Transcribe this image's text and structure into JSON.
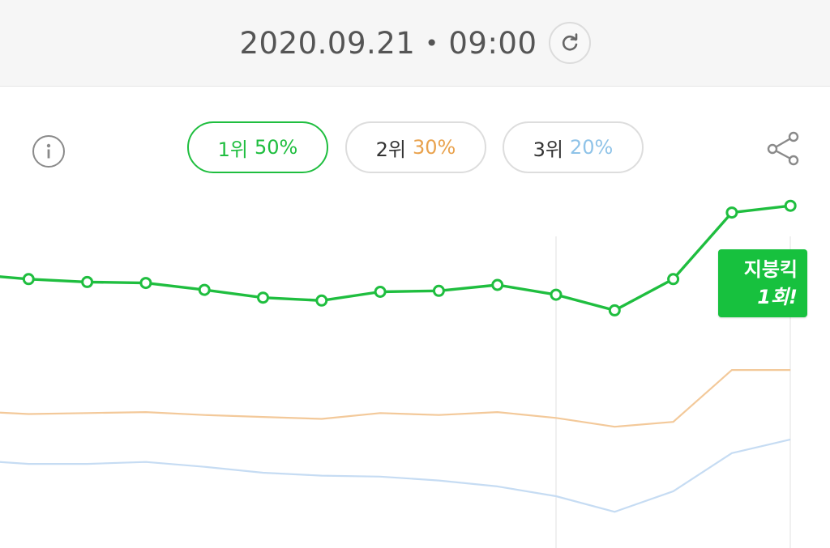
{
  "header": {
    "date": "2020.09.21",
    "separator": "•",
    "time": "09:00",
    "refresh_icon": "refresh-icon"
  },
  "toolbar": {
    "info_icon": "info-icon",
    "share_icon": "share-icon"
  },
  "tabs": [
    {
      "rank": "1위",
      "percent": "50%",
      "color": "#1fbe3f"
    },
    {
      "rank": "2위",
      "percent": "30%",
      "color": "#e9a24d"
    },
    {
      "rank": "3위",
      "percent": "20%",
      "color": "#8fc3e8"
    }
  ],
  "badge": {
    "line1": "지붕킥",
    "line2": "1회!"
  },
  "colors": {
    "accent": "#17c13e",
    "series1": "#1fbe3f",
    "series2": "#f3c99a",
    "series3": "#c6dcf3"
  },
  "chart_data": {
    "type": "line",
    "series": [
      {
        "values": [
          53,
          52.5,
          52.2,
          52.1,
          51.4,
          50.6,
          50.3,
          51.2,
          51.3,
          51.9,
          50.9,
          49.3,
          52.5,
          59.3,
          60.0
        ]
      },
      {
        "values": [
          39,
          38.7,
          38.8,
          38.9,
          38.6,
          38.4,
          38.2,
          38.8,
          38.6,
          38.9,
          38.3,
          37.4,
          37.9,
          43.2,
          43.2
        ]
      },
      {
        "values": [
          34,
          33.6,
          33.6,
          33.8,
          33.3,
          32.7,
          32.4,
          32.3,
          31.9,
          31.3,
          30.3,
          28.7,
          30.8,
          34.7,
          36.1
        ]
      }
    ],
    "ylim": [
      25,
      62
    ],
    "grid": false
  }
}
